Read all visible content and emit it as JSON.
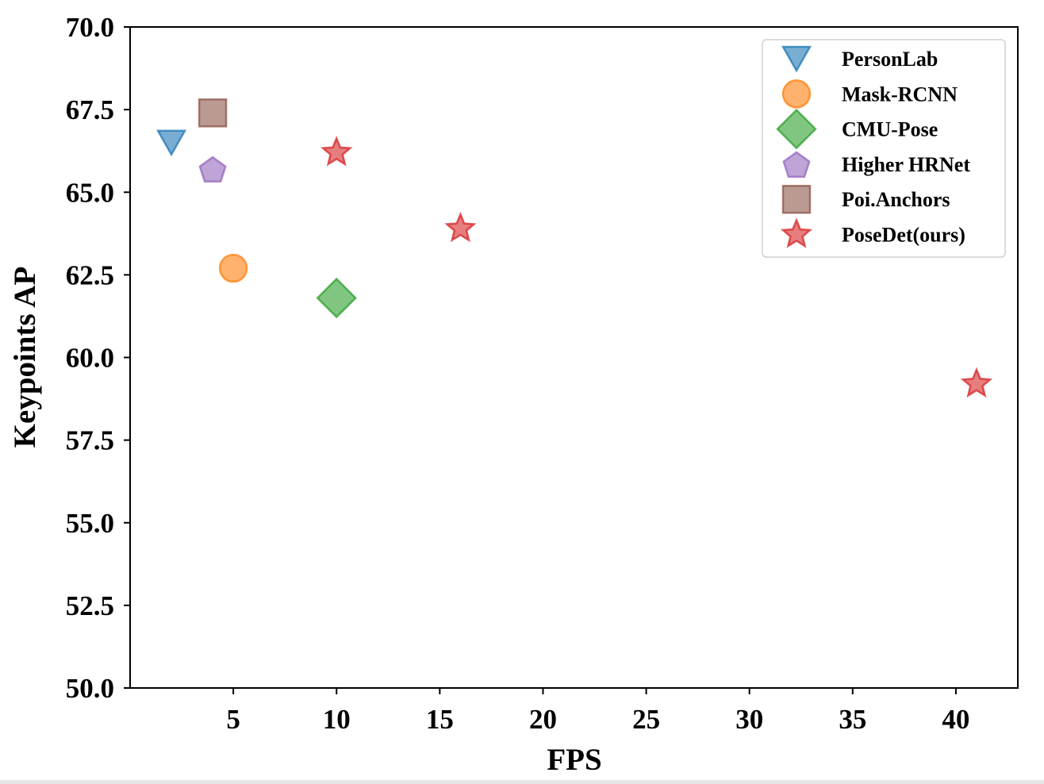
{
  "chart_data": {
    "type": "scatter",
    "xlabel": "FPS",
    "ylabel": "Keypoints AP",
    "xlim": [
      0,
      43
    ],
    "ylim": [
      50.0,
      70.0
    ],
    "xticks": [
      5,
      10,
      15,
      20,
      25,
      30,
      35,
      40
    ],
    "yticks": [
      50.0,
      52.5,
      55.0,
      57.5,
      60.0,
      62.5,
      65.0,
      67.5,
      70.0
    ],
    "ytick_labels": [
      "50.0",
      "52.5",
      "55.0",
      "57.5",
      "60.0",
      "62.5",
      "65.0",
      "67.5",
      "70.0"
    ],
    "legend_position": "top-right",
    "grid": false,
    "series": [
      {
        "name": "PersonLab",
        "marker": "triangle-down-icon",
        "color": "#1f77b4",
        "points": [
          {
            "x": 2,
            "y": 66.5
          }
        ]
      },
      {
        "name": "Mask-RCNN",
        "marker": "circle-icon",
        "color": "#ff7f0e",
        "points": [
          {
            "x": 5,
            "y": 62.7
          }
        ]
      },
      {
        "name": "CMU-Pose",
        "marker": "diamond-icon",
        "color": "#2ca02c",
        "points": [
          {
            "x": 10,
            "y": 61.8
          }
        ]
      },
      {
        "name": "Higher HRNet",
        "marker": "pentagon-icon",
        "color": "#9467bd",
        "points": [
          {
            "x": 4,
            "y": 65.7
          }
        ]
      },
      {
        "name": "Poi.Anchors",
        "marker": "square-icon",
        "color": "#8c564b",
        "points": [
          {
            "x": 4,
            "y": 67.4
          }
        ]
      },
      {
        "name": "PoseDet(ours)",
        "marker": "star-icon",
        "color": "#d62728",
        "points": [
          {
            "x": 10,
            "y": 66.2
          },
          {
            "x": 16,
            "y": 63.9
          },
          {
            "x": 41,
            "y": 59.2
          }
        ]
      }
    ]
  }
}
